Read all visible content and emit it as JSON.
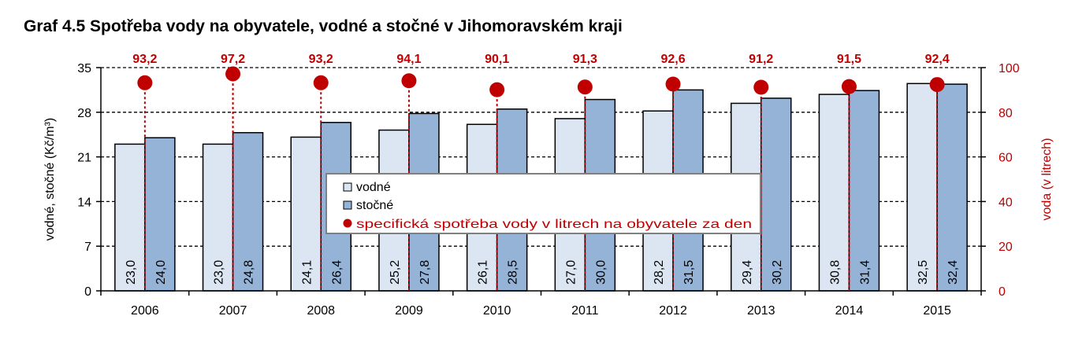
{
  "chart_data": {
    "type": "bar",
    "title": "Graf 4.5 Spotřeba vody na obyvatele, vodné a stočné v Jihomoravském kraji",
    "categories": [
      "2006",
      "2007",
      "2008",
      "2009",
      "2010",
      "2011",
      "2012",
      "2013",
      "2014",
      "2015"
    ],
    "series": [
      {
        "name": "vodné",
        "axis": "left",
        "color": "#dce6f2",
        "values": [
          23.0,
          23.0,
          24.1,
          25.2,
          26.1,
          27.0,
          28.2,
          29.4,
          30.8,
          32.5
        ],
        "labels": [
          "23,0",
          "23,0",
          "24,1",
          "25,2",
          "26,1",
          "27,0",
          "28,2",
          "29,4",
          "30,8",
          "32,5"
        ]
      },
      {
        "name": "stočné",
        "axis": "left",
        "color": "#95b3d7",
        "values": [
          24.0,
          24.8,
          26.4,
          27.8,
          28.5,
          30.0,
          31.5,
          30.2,
          31.4,
          32.4
        ],
        "labels": [
          "24,0",
          "24,8",
          "26,4",
          "27,8",
          "28,5",
          "30,0",
          "31,5",
          "30,2",
          "31,4",
          "32,4"
        ]
      },
      {
        "name": "specifická spotřeba vody v litrech na obyvatele za den",
        "axis": "right",
        "type": "scatter",
        "color": "#c00000",
        "values": [
          93.2,
          97.2,
          93.2,
          94.1,
          90.1,
          91.3,
          92.6,
          91.2,
          91.5,
          92.4
        ],
        "labels": [
          "93,2",
          "97,2",
          "93,2",
          "94,1",
          "90,1",
          "91,3",
          "92,6",
          "91,2",
          "91,5",
          "92,4"
        ]
      }
    ],
    "ylabel": "vodné, stočné  (Kč/m³)",
    "ylim": [
      0,
      35
    ],
    "yticks": [
      "0",
      "7",
      "14",
      "21",
      "28",
      "35"
    ],
    "y2label": "voda (v litrech)",
    "y2lim": [
      0,
      100
    ],
    "y2ticks": [
      "0",
      "20",
      "40",
      "60",
      "80",
      "100"
    ],
    "grid": true,
    "legend_position": "center"
  }
}
